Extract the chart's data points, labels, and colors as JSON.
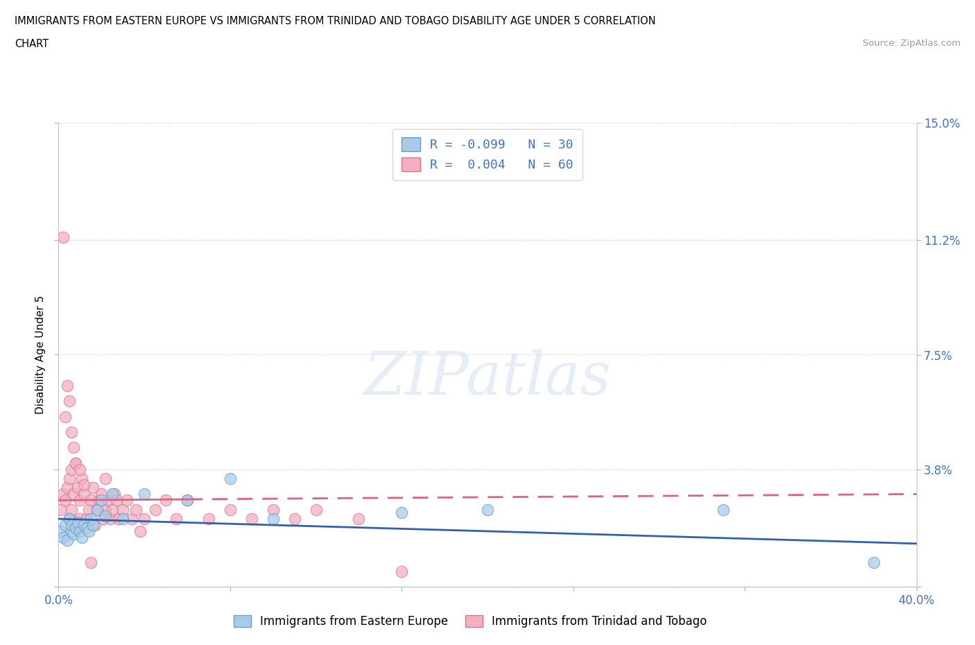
{
  "title_line1": "IMMIGRANTS FROM EASTERN EUROPE VS IMMIGRANTS FROM TRINIDAD AND TOBAGO DISABILITY AGE UNDER 5 CORRELATION",
  "title_line2": "CHART",
  "source": "Source: ZipAtlas.com",
  "ylabel": "Disability Age Under 5",
  "xlim": [
    0.0,
    0.4
  ],
  "ylim": [
    0.0,
    0.15
  ],
  "ytick_vals": [
    0.0,
    0.038,
    0.075,
    0.112,
    0.15
  ],
  "xtick_vals": [
    0.0,
    0.08,
    0.16,
    0.24,
    0.32,
    0.4
  ],
  "color_eastern": "#a8cce8",
  "color_eastern_edge": "#6699cc",
  "color_trinidad": "#f4b0c0",
  "color_trinidad_edge": "#dd7090",
  "blue_text": "#4472c4",
  "grid_color": "#d0d0d0",
  "eastern_x": [
    0.001,
    0.002,
    0.003,
    0.004,
    0.005,
    0.006,
    0.006,
    0.007,
    0.008,
    0.009,
    0.01,
    0.011,
    0.012,
    0.013,
    0.014,
    0.015,
    0.016,
    0.018,
    0.02,
    0.022,
    0.025,
    0.03,
    0.04,
    0.06,
    0.08,
    0.1,
    0.16,
    0.2,
    0.31,
    0.38
  ],
  "eastern_y": [
    0.018,
    0.016,
    0.02,
    0.015,
    0.022,
    0.018,
    0.02,
    0.017,
    0.019,
    0.021,
    0.018,
    0.016,
    0.02,
    0.019,
    0.018,
    0.022,
    0.02,
    0.025,
    0.028,
    0.023,
    0.03,
    0.022,
    0.03,
    0.028,
    0.035,
    0.022,
    0.024,
    0.025,
    0.025,
    0.008
  ],
  "trinidad_x": [
    0.001,
    0.002,
    0.003,
    0.004,
    0.005,
    0.005,
    0.006,
    0.006,
    0.007,
    0.008,
    0.009,
    0.01,
    0.01,
    0.011,
    0.012,
    0.013,
    0.014,
    0.015,
    0.016,
    0.017,
    0.018,
    0.019,
    0.02,
    0.021,
    0.022,
    0.022,
    0.023,
    0.024,
    0.025,
    0.026,
    0.027,
    0.028,
    0.03,
    0.032,
    0.034,
    0.036,
    0.038,
    0.04,
    0.045,
    0.05,
    0.055,
    0.06,
    0.07,
    0.08,
    0.09,
    0.1,
    0.11,
    0.12,
    0.14,
    0.16,
    0.002,
    0.003,
    0.004,
    0.005,
    0.006,
    0.007,
    0.008,
    0.01,
    0.012,
    0.015
  ],
  "trinidad_y": [
    0.025,
    0.03,
    0.028,
    0.032,
    0.035,
    0.022,
    0.025,
    0.038,
    0.03,
    0.04,
    0.032,
    0.028,
    0.022,
    0.035,
    0.03,
    0.022,
    0.025,
    0.028,
    0.032,
    0.02,
    0.025,
    0.028,
    0.03,
    0.022,
    0.025,
    0.035,
    0.028,
    0.022,
    0.025,
    0.03,
    0.028,
    0.022,
    0.025,
    0.028,
    0.022,
    0.025,
    0.018,
    0.022,
    0.025,
    0.028,
    0.022,
    0.028,
    0.022,
    0.025,
    0.022,
    0.025,
    0.022,
    0.025,
    0.022,
    0.005,
    0.113,
    0.055,
    0.065,
    0.06,
    0.05,
    0.045,
    0.04,
    0.038,
    0.033,
    0.008
  ],
  "trend_eastern_y0": 0.022,
  "trend_eastern_y1": 0.014,
  "trend_trinidad_y0": 0.028,
  "trend_trinidad_y1": 0.03,
  "trend_trinidad_solid_end": 0.06
}
